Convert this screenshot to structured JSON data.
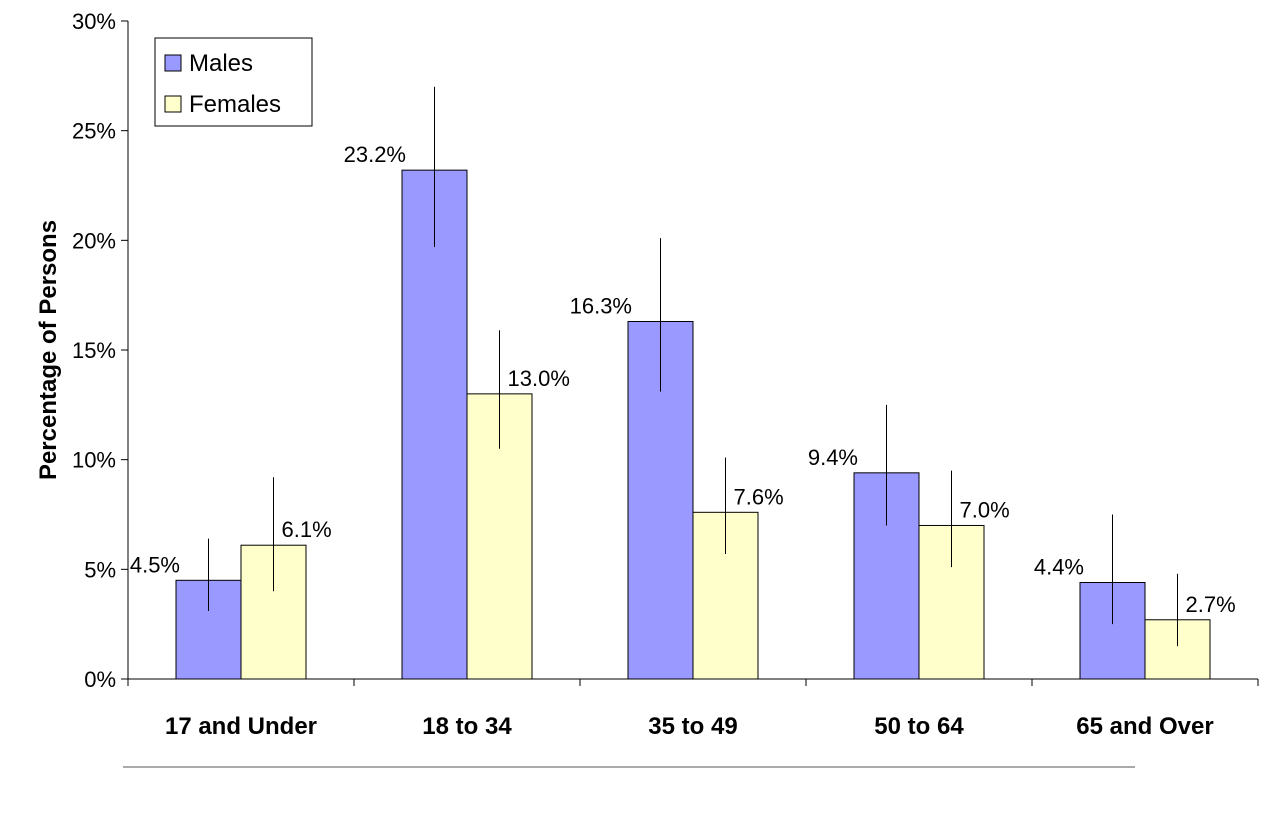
{
  "chart_data": {
    "type": "bar",
    "categories": [
      "17 and Under",
      "18 to 34",
      "35 to 49",
      "50 to 64",
      "65 and Over"
    ],
    "series": [
      {
        "name": "Males",
        "color": "#9999ff",
        "values": [
          4.5,
          23.2,
          16.3,
          9.4,
          4.4
        ],
        "labels": [
          "4.5%",
          "23.2%",
          "16.3%",
          "9.4%",
          "4.4%"
        ],
        "error_low": [
          3.1,
          19.7,
          13.1,
          7.0,
          2.5
        ],
        "error_high": [
          6.4,
          27.0,
          20.1,
          12.5,
          7.5
        ]
      },
      {
        "name": "Females",
        "color": "#ffffcc",
        "values": [
          6.1,
          13.0,
          7.6,
          7.0,
          2.7
        ],
        "labels": [
          "6.1%",
          "13.0%",
          "7.6%",
          "7.0%",
          "2.7%"
        ],
        "error_low": [
          4.0,
          10.5,
          5.7,
          5.1,
          1.5
        ],
        "error_high": [
          9.2,
          15.9,
          10.1,
          9.5,
          4.8
        ]
      }
    ],
    "ylabel": "Percentage of Persons",
    "xlabel": "",
    "ylim": [
      0,
      30
    ],
    "yticks": [
      0,
      5,
      10,
      15,
      20,
      25,
      30
    ],
    "ytick_labels": [
      "0%",
      "5%",
      "10%",
      "15%",
      "20%",
      "25%",
      "30%"
    ],
    "grid": false,
    "legend": {
      "position": "top-left",
      "entries": [
        "Males",
        "Females"
      ]
    }
  }
}
